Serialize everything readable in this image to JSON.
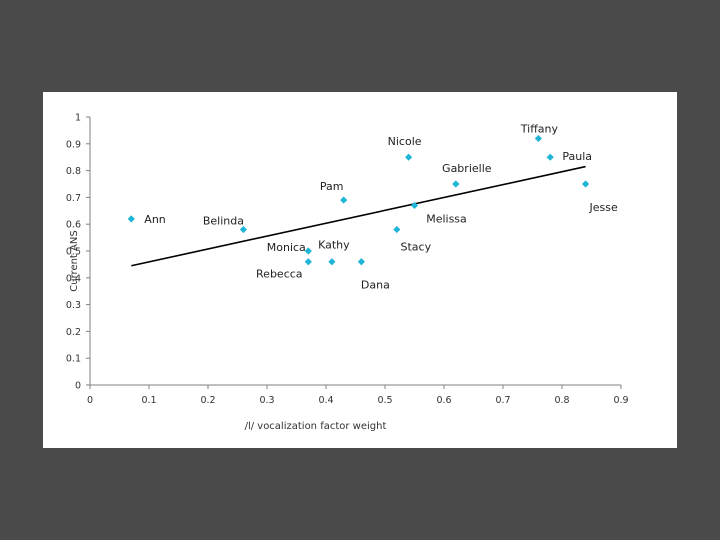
{
  "chart_data": {
    "type": "scatter",
    "title": "",
    "xlabel": "/l/ vocalization factor weight",
    "ylabel": "Current ANS",
    "xlim": [
      0,
      0.9
    ],
    "ylim": [
      0,
      1
    ],
    "xticks": [
      "0",
      "0.1",
      "0.2",
      "0.3",
      "0.4",
      "0.5",
      "0.6",
      "0.7",
      "0.8",
      "0.9"
    ],
    "yticks": [
      "0",
      "0.1",
      "0.2",
      "0.3",
      "0.4",
      "0.5",
      "0.6",
      "0.7",
      "0.8",
      "0.9",
      "1"
    ],
    "grid": false,
    "legend": "none",
    "marker_color": "#1fb5d6",
    "line_color": "#000000",
    "points": [
      {
        "label": "Ann",
        "x": 0.07,
        "y": 0.62
      },
      {
        "label": "Belinda",
        "x": 0.26,
        "y": 0.58
      },
      {
        "label": "Monica",
        "x": 0.37,
        "y": 0.5
      },
      {
        "label": "Rebecca",
        "x": 0.37,
        "y": 0.46
      },
      {
        "label": "Kathy",
        "x": 0.41,
        "y": 0.46
      },
      {
        "label": "Pam",
        "x": 0.43,
        "y": 0.69
      },
      {
        "label": "Dana",
        "x": 0.46,
        "y": 0.46
      },
      {
        "label": "Stacy",
        "x": 0.52,
        "y": 0.58
      },
      {
        "label": "Nicole",
        "x": 0.54,
        "y": 0.85
      },
      {
        "label": "Melissa",
        "x": 0.55,
        "y": 0.67
      },
      {
        "label": "Gabrielle",
        "x": 0.62,
        "y": 0.75
      },
      {
        "label": "Tiffany",
        "x": 0.76,
        "y": 0.92
      },
      {
        "label": "Paula",
        "x": 0.78,
        "y": 0.85
      },
      {
        "label": "Jesse",
        "x": 0.84,
        "y": 0.75
      }
    ],
    "trendline": {
      "x": [
        0.07,
        0.84
      ],
      "y": [
        0.445,
        0.815
      ]
    }
  }
}
